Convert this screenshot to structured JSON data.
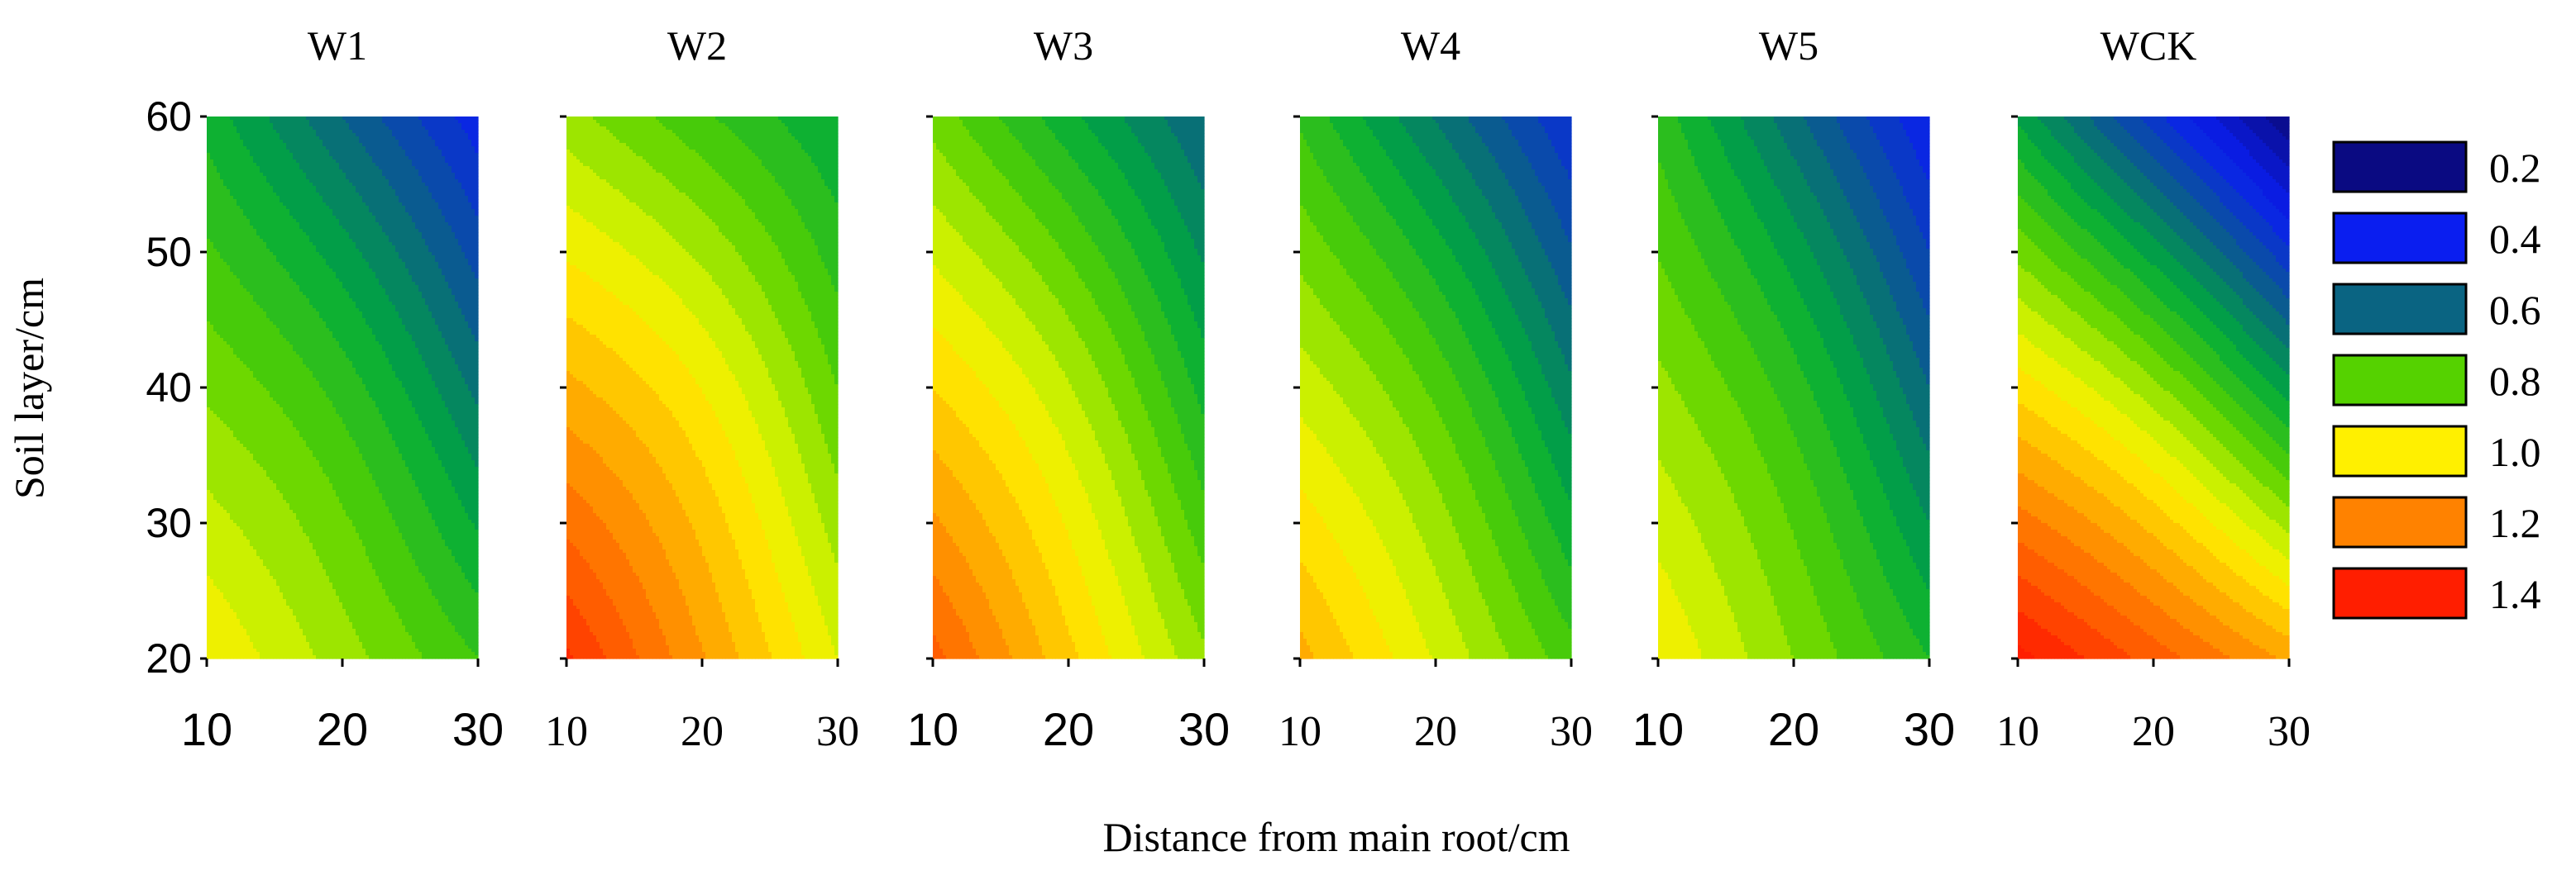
{
  "chart_data": {
    "type": "heatmap",
    "subtype": "filled-contour",
    "xlabel": "Distance from main root/cm",
    "ylabel": "Soil layer/cm",
    "xlim": [
      10,
      30
    ],
    "ylim": [
      20,
      60
    ],
    "x_ticks": [
      "10",
      "20",
      "30"
    ],
    "y_ticks": [
      "20",
      "30",
      "40",
      "50",
      "60"
    ],
    "legend": {
      "position": "right",
      "entries": [
        {
          "label": "0.2",
          "color": "#0a0a82"
        },
        {
          "label": "0.4",
          "color": "#0a1ef0"
        },
        {
          "label": "0.6",
          "color": "#0a6482"
        },
        {
          "label": "0.8",
          "color": "#55d200"
        },
        {
          "label": "1.0",
          "color": "#fff000"
        },
        {
          "label": "1.2",
          "color": "#ff8200"
        },
        {
          "label": "1.4",
          "color": "#ff1e00"
        }
      ]
    },
    "panels": [
      {
        "title": "W1",
        "surface": {
          "at_10_20": 1.0,
          "at_30_20": 0.75,
          "at_10_60": 0.68,
          "at_30_60": 0.32
        }
      },
      {
        "title": "W2",
        "surface": {
          "at_10_20": 1.36,
          "at_30_20": 0.95,
          "at_10_60": 0.87,
          "at_30_60": 0.65
        }
      },
      {
        "title": "W3",
        "surface": {
          "at_10_20": 1.27,
          "at_30_20": 0.86,
          "at_10_60": 0.83,
          "at_30_60": 0.5
        }
      },
      {
        "title": "W4",
        "surface": {
          "at_10_20": 1.12,
          "at_30_20": 0.77,
          "at_10_60": 0.74,
          "at_30_60": 0.35
        }
      },
      {
        "title": "W5",
        "surface": {
          "at_10_20": 1.0,
          "at_30_20": 0.7,
          "at_10_60": 0.73,
          "at_30_60": 0.3
        }
      },
      {
        "title": "WCK",
        "surface": {
          "at_10_20": 1.42,
          "at_30_20": 1.14,
          "at_10_60": 0.64,
          "at_30_60": 0.1
        }
      }
    ]
  }
}
